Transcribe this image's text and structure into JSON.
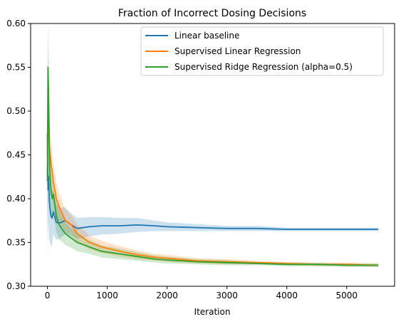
{
  "chart_data": {
    "type": "line",
    "title": "Fraction of Incorrect Dosing Decisions",
    "xlabel": "Iteration",
    "ylabel": "",
    "xlim": [
      -280,
      5800
    ],
    "ylim": [
      0.3,
      0.6
    ],
    "xticks": [
      0,
      1000,
      2000,
      3000,
      4000,
      5000
    ],
    "yticks": [
      0.3,
      0.35,
      0.4,
      0.45,
      0.5,
      0.55,
      0.6
    ],
    "grid": false,
    "legend_position": "top-right",
    "series": [
      {
        "name": "Linear baseline",
        "color": "#1f77b4",
        "x": [
          0,
          10,
          20,
          30,
          40,
          60,
          80,
          100,
          150,
          200,
          300,
          400,
          500,
          700,
          900,
          1200,
          1500,
          1800,
          2000,
          2500,
          3000,
          3500,
          4000,
          4500,
          5000,
          5528
        ],
        "y": [
          0.475,
          0.41,
          0.425,
          0.4,
          0.39,
          0.38,
          0.378,
          0.385,
          0.373,
          0.372,
          0.375,
          0.37,
          0.366,
          0.368,
          0.369,
          0.369,
          0.37,
          0.369,
          0.368,
          0.367,
          0.366,
          0.366,
          0.365,
          0.365,
          0.365,
          0.365
        ],
        "band": [
          0.08,
          0.06,
          0.05,
          0.045,
          0.04,
          0.035,
          0.03,
          0.025,
          0.02,
          0.018,
          0.015,
          0.013,
          0.012,
          0.011,
          0.01,
          0.009,
          0.008,
          0.006,
          0.005,
          0.004,
          0.003,
          0.003,
          0.002,
          0.002,
          0.002,
          0.002
        ]
      },
      {
        "name": "Supervised Linear Regression",
        "color": "#ff7f0e",
        "x": [
          0,
          10,
          20,
          30,
          40,
          60,
          80,
          100,
          150,
          200,
          300,
          400,
          500,
          700,
          900,
          1200,
          1500,
          1800,
          2000,
          2500,
          3000,
          3500,
          4000,
          4500,
          5000,
          5528
        ],
        "y": [
          0.45,
          0.5,
          0.49,
          0.46,
          0.455,
          0.44,
          0.43,
          0.42,
          0.4,
          0.39,
          0.375,
          0.37,
          0.36,
          0.35,
          0.345,
          0.34,
          0.336,
          0.333,
          0.332,
          0.329,
          0.328,
          0.327,
          0.326,
          0.325,
          0.325,
          0.324
        ],
        "band": [
          0.1,
          0.06,
          0.05,
          0.04,
          0.035,
          0.03,
          0.025,
          0.02,
          0.018,
          0.016,
          0.013,
          0.011,
          0.01,
          0.008,
          0.007,
          0.006,
          0.005,
          0.004,
          0.004,
          0.003,
          0.003,
          0.002,
          0.002,
          0.002,
          0.002,
          0.002
        ]
      },
      {
        "name": "Supervised Ridge Regression (alpha=0.5)",
        "color": "#2ca02c",
        "x": [
          0,
          10,
          20,
          30,
          40,
          60,
          80,
          100,
          150,
          200,
          300,
          400,
          500,
          700,
          900,
          1200,
          1500,
          1800,
          2000,
          2500,
          3000,
          3500,
          4000,
          4500,
          5000,
          5528
        ],
        "y": [
          0.42,
          0.55,
          0.52,
          0.47,
          0.43,
          0.41,
          0.4,
          0.405,
          0.38,
          0.37,
          0.36,
          0.355,
          0.35,
          0.345,
          0.34,
          0.337,
          0.334,
          0.331,
          0.33,
          0.328,
          0.327,
          0.326,
          0.325,
          0.325,
          0.324,
          0.324
        ],
        "band": [
          0.1,
          0.06,
          0.05,
          0.04,
          0.035,
          0.03,
          0.025,
          0.02,
          0.018,
          0.016,
          0.013,
          0.011,
          0.01,
          0.008,
          0.007,
          0.006,
          0.005,
          0.004,
          0.004,
          0.003,
          0.003,
          0.002,
          0.002,
          0.002,
          0.002,
          0.002
        ]
      }
    ]
  }
}
